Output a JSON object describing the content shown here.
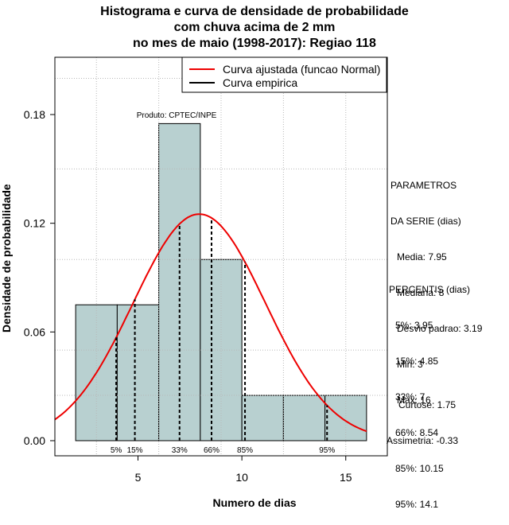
{
  "chart_data": {
    "type": "bar",
    "title_lines": [
      "Histograma e curva de densidade de probabilidade",
      "com chuva acima de 2 mm",
      "no mes de maio (1998-2017): Regiao 118"
    ],
    "xlabel": "Numero de dias",
    "ylabel": "Densidade de probabilidade",
    "xlim": [
      1,
      17
    ],
    "ylim": [
      0,
      0.2
    ],
    "xticks": [
      5,
      10,
      15
    ],
    "yticks": [
      0.0,
      0.06,
      0.12,
      0.18
    ],
    "ytick_labels": [
      "0.00",
      "0.06",
      "0.12",
      "0.18"
    ],
    "bins": [
      {
        "start": 2,
        "end": 4,
        "density": 0.075
      },
      {
        "start": 4,
        "end": 6,
        "density": 0.075
      },
      {
        "start": 6,
        "end": 8,
        "density": 0.175
      },
      {
        "start": 8,
        "end": 10,
        "density": 0.1
      },
      {
        "start": 10,
        "end": 12,
        "density": 0.025
      },
      {
        "start": 12,
        "end": 14,
        "density": 0.025
      },
      {
        "start": 14,
        "end": 16,
        "density": 0.025
      }
    ],
    "normal_fit": {
      "mean": 7.95,
      "sd": 3.19,
      "color": "#ee0000"
    },
    "bar_color": "#b8d0d0",
    "legend": [
      {
        "label": "Curva ajustada (funcao Normal)",
        "color": "#ee0000"
      },
      {
        "label": "Curva empirica",
        "color": "#000000"
      }
    ],
    "legend_position": "top-right",
    "annotation": "Produto: CPTEC/INPE",
    "percentile_lines": [
      {
        "label": "5%",
        "value": 3.95
      },
      {
        "label": "15%",
        "value": 4.85
      },
      {
        "label": "33%",
        "value": 7
      },
      {
        "label": "66%",
        "value": 8.54
      },
      {
        "label": "85%",
        "value": 10.15
      },
      {
        "label": "95%",
        "value": 14.1
      }
    ],
    "grid": true
  },
  "parametros": {
    "heading_1": "PARAMETROS",
    "heading_2": "DA SERIE (dias)",
    "media": "Media: 7.95",
    "mediana": "Mediana: 8",
    "desvio": "Desvio padrao: 3.19",
    "min": "Min: 3",
    "max": "Max: 16"
  },
  "percentis": {
    "heading": "PERCENTIS (dias)",
    "p5": "5%: 3.95",
    "p15": "15%: 4.85",
    "p33": "33%: 7",
    "p66": "66%: 8.54",
    "p85": "85%: 10.15",
    "p95": "95%: 14.1"
  },
  "shape": {
    "curtose": "Curtose: 1.75",
    "assimetria": "Assimetria: -0.33"
  }
}
